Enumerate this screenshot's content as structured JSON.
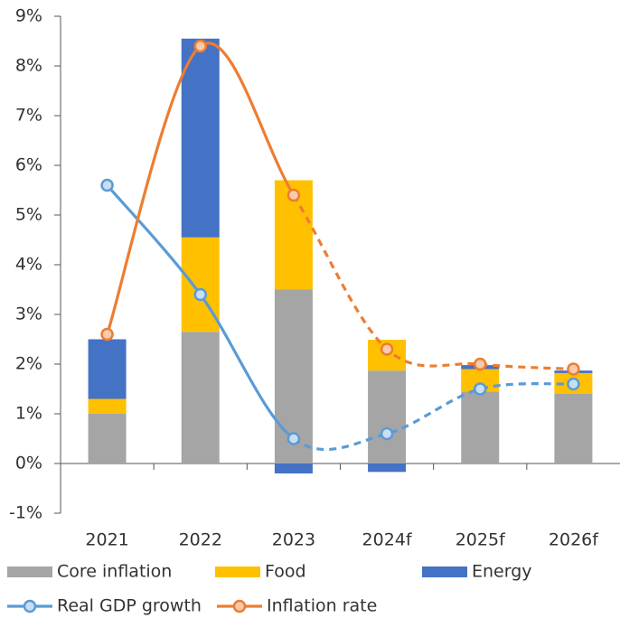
{
  "chart_data": {
    "type": "bar",
    "categories": [
      "2021",
      "2022",
      "2023",
      "2024f",
      "2025f",
      "2026f"
    ],
    "series": [
      {
        "name": "Core inflation",
        "type": "bar",
        "color": "#a5a5a5",
        "values": [
          1.0,
          2.65,
          3.5,
          1.87,
          1.45,
          1.4
        ]
      },
      {
        "name": "Food",
        "type": "bar",
        "color": "#ffc000",
        "values": [
          0.3,
          1.9,
          2.2,
          0.62,
          0.45,
          0.42
        ]
      },
      {
        "name": "Energy",
        "type": "bar",
        "color": "#4472c4",
        "values": [
          1.2,
          4.0,
          -0.2,
          -0.17,
          0.08,
          0.05
        ]
      },
      {
        "name": "Real GDP growth",
        "type": "line",
        "color": "#5b9bd5",
        "marker_fill": "#c9def2",
        "values": [
          5.6,
          3.4,
          0.5,
          0.6,
          1.5,
          1.6
        ]
      },
      {
        "name": "Inflation rate",
        "type": "line",
        "color": "#ed7d31",
        "marker_fill": "#f8cbad",
        "values": [
          2.6,
          8.4,
          5.4,
          2.3,
          2.0,
          1.9
        ]
      }
    ],
    "dashed_from": "2023",
    "ylim": [
      -1,
      9
    ],
    "yticks": [
      {
        "value": -1,
        "label": "-1%"
      },
      {
        "value": 0,
        "label": "0%"
      },
      {
        "value": 1,
        "label": "1%"
      },
      {
        "value": 2,
        "label": "2%"
      },
      {
        "value": 3,
        "label": "3%"
      },
      {
        "value": 4,
        "label": "4%"
      },
      {
        "value": 5,
        "label": "5%"
      },
      {
        "value": 6,
        "label": "6%"
      },
      {
        "value": 7,
        "label": "7%"
      },
      {
        "value": 8,
        "label": "8%"
      },
      {
        "value": 9,
        "label": "9%"
      }
    ],
    "grid": false
  }
}
